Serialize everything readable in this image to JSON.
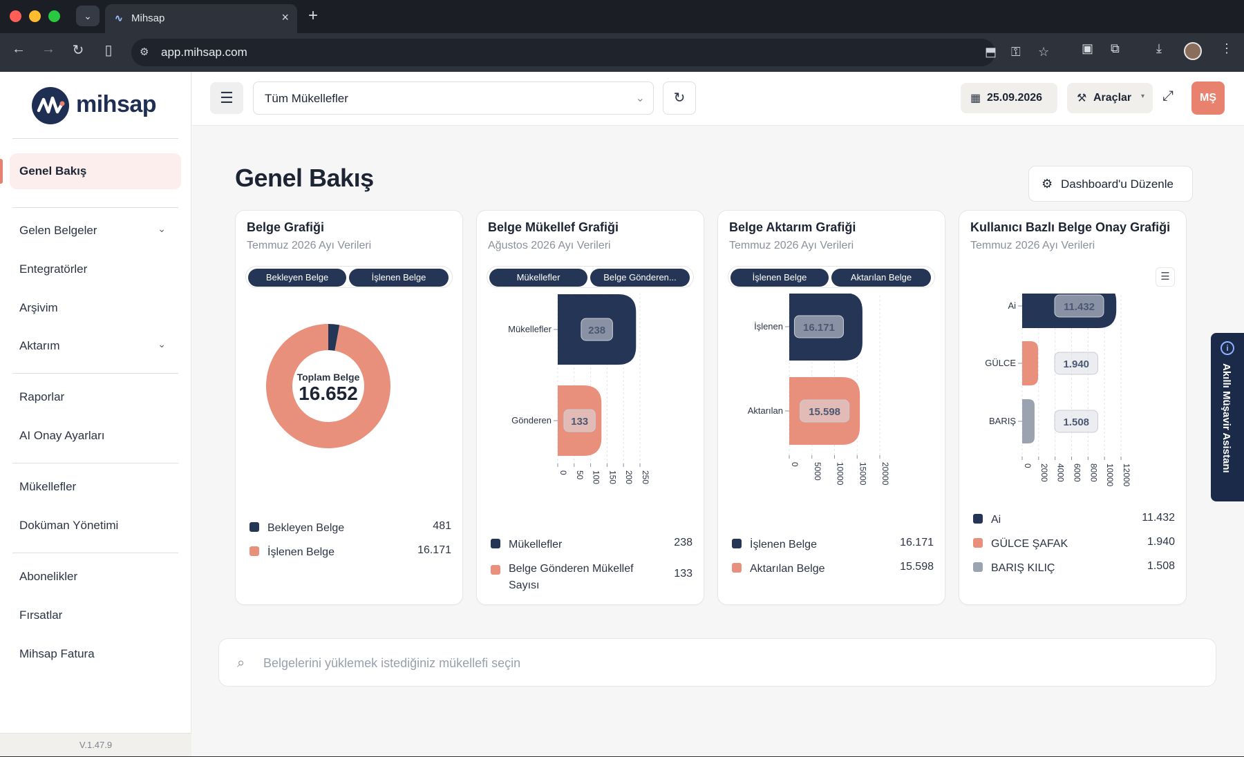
{
  "browser": {
    "tab_title": "Mihsap",
    "url": "app.mihsap.com"
  },
  "sidebar": {
    "logo_text": "mihsap",
    "items": [
      {
        "label": "Genel Bakış",
        "active": true
      },
      {
        "label": "Gelen Belgeler",
        "chevron": true
      },
      {
        "label": "Entegratörler"
      },
      {
        "label": "Arşivim"
      },
      {
        "label": "Aktarım",
        "chevron": true
      },
      {
        "label": "Raporlar"
      },
      {
        "label": "AI Onay Ayarları"
      },
      {
        "label": "Mükellefler"
      },
      {
        "label": "Doküman Yönetimi"
      },
      {
        "label": "Abonelikler"
      },
      {
        "label": "Fırsatlar"
      },
      {
        "label": "Mihsap Fatura"
      }
    ],
    "version": "V.1.47.9"
  },
  "topbar": {
    "taxpayer_select": "Tüm Mükellefler",
    "date": "25.09.2026",
    "tools_label": "Araçlar",
    "avatar_initials": "MŞ"
  },
  "main": {
    "page_title": "Genel Bakış",
    "edit_dashboard_label": "Dashboard'u Düzenle",
    "uploader_placeholder": "Belgelerini yüklemek istediğiniz mükellefi seçin"
  },
  "assistant": {
    "label": "Akıllı Müşavir Asistanı"
  },
  "colors": {
    "navy": "#243556",
    "salmon": "#e8907c",
    "gray": "#9aa3af",
    "accent": "#e6806f"
  },
  "cards": [
    {
      "title": "Belge Grafiği",
      "subtitle": "Temmuz 2026 Ayı Verileri",
      "pills": [
        "Bekleyen Belge",
        "İşlenen Belge"
      ],
      "center_label": "Toplam Belge",
      "center_value": "16.652",
      "legend": [
        {
          "name": "Bekleyen Belge",
          "value": "481",
          "color": "#243556"
        },
        {
          "name": "İşlenen Belge",
          "value": "16.171",
          "color": "#e8907c"
        }
      ]
    },
    {
      "title": "Belge Mükellef Grafiği",
      "subtitle": "Ağustos 2026 Ayı Verileri",
      "pills": [
        "Mükellefler",
        "Belge Gönderen..."
      ],
      "legend": [
        {
          "name": "Mükellefler",
          "value": "238",
          "color": "#243556"
        },
        {
          "name": "Belge Gönderen Mükellef Sayısı",
          "value": "133",
          "color": "#e8907c"
        }
      ]
    },
    {
      "title": "Belge Aktarım Grafiği",
      "subtitle": "Temmuz 2026 Ayı Verileri",
      "pills": [
        "İşlenen Belge",
        "Aktarılan Belge"
      ],
      "legend": [
        {
          "name": "İşlenen Belge",
          "value": "16.171",
          "color": "#243556"
        },
        {
          "name": "Aktarılan Belge",
          "value": "15.598",
          "color": "#e8907c"
        }
      ]
    },
    {
      "title": "Kullanıcı Bazlı Belge Onay Grafiği",
      "subtitle": "Temmuz 2026 Ayı Verileri",
      "legend": [
        {
          "name": "Ai",
          "value": "11.432",
          "color": "#243556"
        },
        {
          "name": "GÜLCE ŞAFAK",
          "value": "1.940",
          "color": "#e8907c"
        },
        {
          "name": "BARIŞ KILIÇ",
          "value": "1.508",
          "color": "#9aa3af"
        }
      ]
    }
  ],
  "chart_data": [
    {
      "type": "pie",
      "title": "Belge Grafiği",
      "categories": [
        "Bekleyen Belge",
        "İşlenen Belge"
      ],
      "values": [
        481,
        16171
      ],
      "colors": [
        "#243556",
        "#e8907c"
      ]
    },
    {
      "type": "bar",
      "title": "Belge Mükellef Grafiği",
      "orientation": "horizontal",
      "categories": [
        "Mükellefler",
        "Gönderen"
      ],
      "values": [
        238,
        133
      ],
      "value_labels": [
        "238",
        "133"
      ],
      "colors": [
        "#243556",
        "#e8907c"
      ],
      "xlim": [
        0,
        250
      ],
      "xticks": [
        "0",
        "50",
        "100",
        "150",
        "200",
        "250"
      ]
    },
    {
      "type": "bar",
      "title": "Belge Aktarım Grafiği",
      "orientation": "horizontal",
      "categories": [
        "İşlenen",
        "Aktarılan"
      ],
      "values": [
        16171,
        15598
      ],
      "value_labels": [
        "16.171",
        "15.598"
      ],
      "colors": [
        "#243556",
        "#e8907c"
      ],
      "xlim": [
        0,
        20000
      ],
      "xticks": [
        "0",
        "5000",
        "10000",
        "15000",
        "20000"
      ]
    },
    {
      "type": "bar",
      "title": "Kullanıcı Bazlı Belge Onay Grafiği",
      "orientation": "horizontal",
      "categories": [
        "Ai",
        "GÜLCE",
        "BARIŞ"
      ],
      "values": [
        11432,
        1940,
        1508
      ],
      "value_labels": [
        "11.432",
        "1.940",
        "1.508"
      ],
      "colors": [
        "#243556",
        "#e8907c",
        "#9aa3af"
      ],
      "xlim": [
        0,
        12000
      ],
      "xticks": [
        "0",
        "2000",
        "4000",
        "6000",
        "8000",
        "10000",
        "12000"
      ]
    }
  ]
}
